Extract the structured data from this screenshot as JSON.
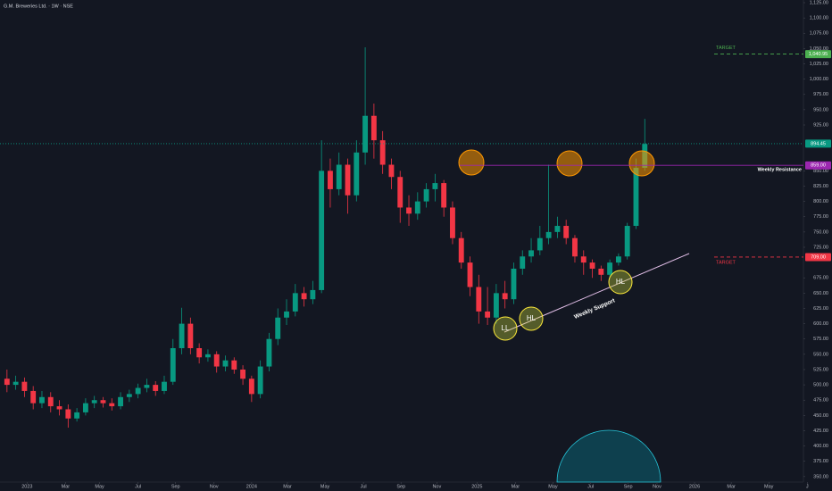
{
  "chart_data": {
    "type": "candlestick",
    "title": "G.M. Breweries Ltd. · 1W · NSE",
    "up_color": "#089981",
    "down_color": "#f23645",
    "open": [
      510,
      500,
      505,
      490,
      470,
      480,
      465,
      460,
      445,
      455,
      470,
      475,
      470,
      465,
      480,
      485,
      495,
      500,
      490,
      505,
      560,
      600,
      560,
      545,
      550,
      530,
      540,
      525,
      510,
      485,
      530,
      575,
      610,
      620,
      650,
      640,
      655,
      850,
      820,
      860,
      810,
      880,
      940,
      900,
      860,
      840,
      790,
      780,
      800,
      820,
      830,
      790,
      740,
      700,
      660,
      620,
      610,
      650,
      640,
      690,
      710,
      720,
      740,
      750,
      760,
      740,
      710,
      700,
      690,
      680,
      700,
      710,
      760,
      855
    ],
    "high": [
      525,
      515,
      512,
      498,
      490,
      488,
      475,
      468,
      462,
      478,
      482,
      480,
      478,
      488,
      492,
      502,
      510,
      506,
      515,
      575,
      626,
      610,
      568,
      558,
      555,
      548,
      545,
      532,
      515,
      540,
      585,
      625,
      640,
      665,
      660,
      670,
      900,
      870,
      880,
      870,
      900,
      1052,
      960,
      915,
      870,
      850,
      810,
      815,
      830,
      845,
      835,
      800,
      750,
      710,
      680,
      660,
      665,
      670,
      700,
      720,
      740,
      760,
      860,
      775,
      770,
      745,
      720,
      705,
      695,
      705,
      715,
      765,
      870,
      935
    ],
    "low": [
      488,
      492,
      480,
      460,
      462,
      455,
      450,
      430,
      440,
      450,
      462,
      463,
      458,
      460,
      472,
      478,
      488,
      482,
      485,
      500,
      550,
      550,
      535,
      538,
      520,
      522,
      518,
      500,
      472,
      478,
      522,
      565,
      598,
      612,
      628,
      632,
      650,
      790,
      810,
      780,
      800,
      860,
      870,
      845,
      820,
      765,
      760,
      770,
      790,
      800,
      775,
      730,
      690,
      645,
      600,
      598,
      600,
      625,
      632,
      680,
      700,
      712,
      730,
      740,
      730,
      700,
      680,
      675,
      670,
      675,
      695,
      705,
      755,
      850
    ],
    "close": [
      500,
      505,
      490,
      470,
      480,
      465,
      460,
      445,
      455,
      470,
      475,
      470,
      465,
      480,
      485,
      495,
      500,
      490,
      505,
      560,
      600,
      560,
      545,
      550,
      530,
      540,
      525,
      510,
      485,
      530,
      575,
      610,
      620,
      650,
      640,
      655,
      850,
      820,
      860,
      810,
      880,
      940,
      900,
      860,
      840,
      790,
      780,
      800,
      820,
      830,
      790,
      740,
      700,
      660,
      620,
      610,
      650,
      640,
      690,
      710,
      720,
      740,
      750,
      760,
      740,
      710,
      700,
      690,
      680,
      700,
      710,
      760,
      855,
      894
    ],
    "xlim": [
      -0.8,
      93
    ],
    "xticks": [
      {
        "value": 2.3,
        "label": "2023"
      },
      {
        "value": 6.7,
        "label": "Mar"
      },
      {
        "value": 10.6,
        "label": "May"
      },
      {
        "value": 15.0,
        "label": "Jul"
      },
      {
        "value": 19.3,
        "label": "Sep"
      },
      {
        "value": 23.7,
        "label": "Nov"
      },
      {
        "value": 28.0,
        "label": "2024"
      },
      {
        "value": 32.1,
        "label": "Mar"
      },
      {
        "value": 36.4,
        "label": "May"
      },
      {
        "value": 40.8,
        "label": "Jul"
      },
      {
        "value": 45.1,
        "label": "Sep"
      },
      {
        "value": 49.2,
        "label": "Nov"
      },
      {
        "value": 53.8,
        "label": "2025"
      },
      {
        "value": 58.2,
        "label": "Mar"
      },
      {
        "value": 62.5,
        "label": "May"
      },
      {
        "value": 66.8,
        "label": "Jul"
      },
      {
        "value": 71.1,
        "label": "Sep"
      },
      {
        "value": 74.4,
        "label": "Nov"
      },
      {
        "value": 78.7,
        "label": "2026"
      },
      {
        "value": 82.9,
        "label": "Mar"
      },
      {
        "value": 87.2,
        "label": "May"
      },
      {
        "value": 91.6,
        "label": "J"
      }
    ],
    "ylim": [
      341,
      1129.4
    ],
    "yticks": [
      {
        "value": 350,
        "label": "350.00"
      },
      {
        "value": 375,
        "label": "375.00"
      },
      {
        "value": 400,
        "label": "400.00"
      },
      {
        "value": 425,
        "label": "425.00"
      },
      {
        "value": 450,
        "label": "450.00"
      },
      {
        "value": 475,
        "label": "475.00"
      },
      {
        "value": 500,
        "label": "500.00"
      },
      {
        "value": 525,
        "label": "525.00"
      },
      {
        "value": 550,
        "label": "550.00"
      },
      {
        "value": 575,
        "label": "575.00"
      },
      {
        "value": 600,
        "label": "600.00"
      },
      {
        "value": 625,
        "label": "625.00"
      },
      {
        "value": 650,
        "label": "650.00"
      },
      {
        "value": 675,
        "label": "675.00"
      },
      {
        "value": 725,
        "label": "725.00"
      },
      {
        "value": 750,
        "label": "750.00"
      },
      {
        "value": 775,
        "label": "775.00"
      },
      {
        "value": 800,
        "label": "800.00"
      },
      {
        "value": 825,
        "label": "825.00"
      },
      {
        "value": 850,
        "label": "850.00"
      },
      {
        "value": 925,
        "label": "925.00"
      },
      {
        "value": 950,
        "label": "950.00"
      },
      {
        "value": 975,
        "label": "975.00"
      },
      {
        "value": 1000,
        "label": "1,000.00"
      },
      {
        "value": 1025,
        "label": "1,025.00"
      },
      {
        "value": 1050,
        "label": "1,050.00"
      },
      {
        "value": 1075,
        "label": "1,075.00"
      },
      {
        "value": 1100,
        "label": "1,100.00"
      },
      {
        "value": 1125,
        "label": "1,125.00"
      }
    ],
    "levels": [
      {
        "name": "TARGET",
        "value": 1040.95,
        "label": "1,040.95",
        "color": "#4caf50"
      },
      {
        "name": "Weekly Resistance",
        "value": 859,
        "label": "859.00",
        "color": "#9c27b0"
      },
      {
        "name": "TARGET",
        "value": 709,
        "label": "709.00",
        "color": "#f23645"
      },
      {
        "value": 894.45,
        "label": "894.45",
        "color": "#089981"
      }
    ],
    "annotations": [
      "LL",
      "HL",
      "HL",
      "Weekly Support"
    ]
  }
}
